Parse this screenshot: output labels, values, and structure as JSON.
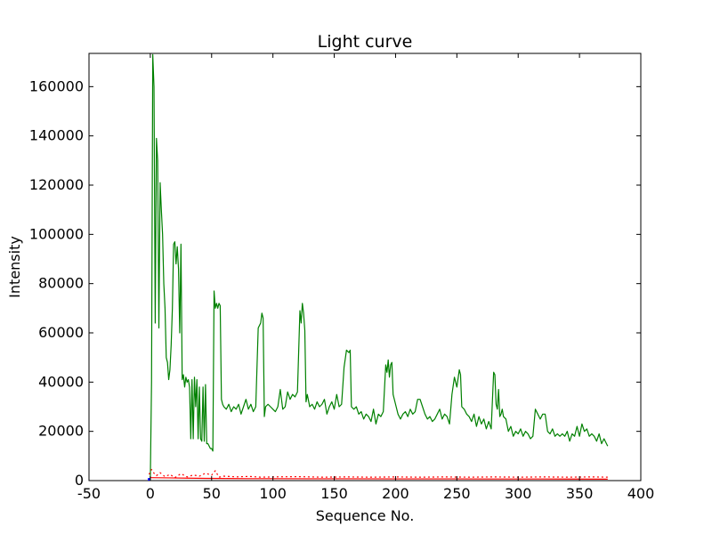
{
  "chart_data": {
    "type": "line",
    "title": "Light curve",
    "xlabel": "Sequence No.",
    "ylabel": "Intensity",
    "xlim": [
      -50,
      400
    ],
    "ylim": [
      0,
      173500
    ],
    "xticks": [
      -50,
      0,
      50,
      100,
      150,
      200,
      250,
      300,
      350,
      400
    ],
    "yticks": [
      0,
      20000,
      40000,
      60000,
      80000,
      100000,
      120000,
      140000,
      160000
    ],
    "grid": false,
    "legend": "none",
    "series": [
      {
        "color": "#008000",
        "style": "solid",
        "points": [
          [
            0,
            0
          ],
          [
            1,
            40000
          ],
          [
            2,
            173000
          ],
          [
            3,
            160000
          ],
          [
            4,
            64000
          ],
          [
            5,
            139000
          ],
          [
            6,
            130000
          ],
          [
            7,
            62000
          ],
          [
            8,
            121000
          ],
          [
            9,
            110000
          ],
          [
            10,
            100000
          ],
          [
            11,
            80000
          ],
          [
            12,
            70000
          ],
          [
            13,
            50000
          ],
          [
            14,
            48000
          ],
          [
            15,
            41000
          ],
          [
            16,
            45000
          ],
          [
            17,
            55000
          ],
          [
            18,
            70000
          ],
          [
            19,
            96000
          ],
          [
            20,
            97000
          ],
          [
            21,
            88000
          ],
          [
            22,
            95000
          ],
          [
            23,
            86000
          ],
          [
            24,
            60000
          ],
          [
            25,
            96000
          ],
          [
            26,
            41000
          ],
          [
            27,
            43000
          ],
          [
            28,
            38000
          ],
          [
            29,
            42000
          ],
          [
            30,
            40000
          ],
          [
            31,
            41000
          ],
          [
            32,
            38000
          ],
          [
            33,
            17000
          ],
          [
            34,
            41000
          ],
          [
            35,
            17000
          ],
          [
            36,
            42000
          ],
          [
            37,
            30000
          ],
          [
            38,
            41000
          ],
          [
            39,
            17000
          ],
          [
            40,
            38000
          ],
          [
            41,
            17000
          ],
          [
            42,
            16000
          ],
          [
            43,
            38000
          ],
          [
            44,
            16000
          ],
          [
            45,
            39000
          ],
          [
            46,
            15000
          ],
          [
            47,
            15000
          ],
          [
            48,
            14000
          ],
          [
            49,
            13000
          ],
          [
            50,
            13000
          ],
          [
            51,
            12000
          ],
          [
            52,
            77000
          ],
          [
            53,
            70000
          ],
          [
            54,
            72000
          ],
          [
            55,
            70000
          ],
          [
            56,
            72000
          ],
          [
            57,
            71000
          ],
          [
            58,
            33000
          ],
          [
            59,
            31000
          ],
          [
            60,
            30000
          ],
          [
            62,
            29000
          ],
          [
            64,
            31000
          ],
          [
            66,
            28000
          ],
          [
            68,
            30000
          ],
          [
            70,
            29000
          ],
          [
            72,
            31000
          ],
          [
            74,
            27000
          ],
          [
            76,
            30000
          ],
          [
            78,
            33000
          ],
          [
            80,
            29000
          ],
          [
            82,
            31000
          ],
          [
            84,
            28000
          ],
          [
            86,
            30000
          ],
          [
            88,
            62000
          ],
          [
            90,
            64000
          ],
          [
            91,
            68000
          ],
          [
            92,
            66000
          ],
          [
            93,
            26000
          ],
          [
            94,
            30000
          ],
          [
            96,
            31000
          ],
          [
            98,
            30000
          ],
          [
            100,
            29000
          ],
          [
            102,
            28000
          ],
          [
            104,
            30000
          ],
          [
            106,
            37000
          ],
          [
            108,
            29000
          ],
          [
            110,
            30000
          ],
          [
            112,
            36000
          ],
          [
            114,
            33000
          ],
          [
            116,
            35000
          ],
          [
            118,
            34000
          ],
          [
            120,
            36000
          ],
          [
            122,
            69000
          ],
          [
            123,
            64000
          ],
          [
            124,
            72000
          ],
          [
            125,
            68000
          ],
          [
            126,
            61000
          ],
          [
            127,
            32000
          ],
          [
            128,
            35000
          ],
          [
            130,
            30000
          ],
          [
            132,
            31000
          ],
          [
            134,
            29000
          ],
          [
            136,
            32000
          ],
          [
            138,
            30000
          ],
          [
            140,
            31000
          ],
          [
            142,
            33000
          ],
          [
            144,
            27000
          ],
          [
            146,
            30000
          ],
          [
            148,
            32000
          ],
          [
            150,
            29000
          ],
          [
            152,
            35000
          ],
          [
            154,
            30000
          ],
          [
            156,
            31000
          ],
          [
            158,
            46000
          ],
          [
            160,
            53000
          ],
          [
            162,
            52000
          ],
          [
            163,
            53000
          ],
          [
            164,
            30000
          ],
          [
            166,
            29000
          ],
          [
            168,
            30000
          ],
          [
            170,
            27000
          ],
          [
            172,
            28000
          ],
          [
            174,
            25000
          ],
          [
            176,
            27000
          ],
          [
            178,
            26000
          ],
          [
            180,
            24000
          ],
          [
            182,
            29000
          ],
          [
            184,
            23000
          ],
          [
            186,
            27000
          ],
          [
            188,
            26000
          ],
          [
            190,
            28000
          ],
          [
            192,
            47000
          ],
          [
            193,
            44000
          ],
          [
            194,
            49000
          ],
          [
            195,
            42000
          ],
          [
            196,
            47000
          ],
          [
            197,
            48000
          ],
          [
            198,
            35000
          ],
          [
            200,
            31000
          ],
          [
            202,
            27000
          ],
          [
            204,
            25000
          ],
          [
            206,
            27000
          ],
          [
            208,
            28000
          ],
          [
            210,
            26000
          ],
          [
            212,
            29000
          ],
          [
            214,
            27000
          ],
          [
            216,
            28000
          ],
          [
            218,
            33000
          ],
          [
            220,
            33000
          ],
          [
            222,
            30000
          ],
          [
            224,
            27000
          ],
          [
            226,
            25000
          ],
          [
            228,
            26000
          ],
          [
            230,
            24000
          ],
          [
            232,
            25000
          ],
          [
            234,
            27000
          ],
          [
            236,
            29000
          ],
          [
            238,
            25000
          ],
          [
            240,
            27000
          ],
          [
            242,
            26000
          ],
          [
            244,
            23000
          ],
          [
            246,
            35000
          ],
          [
            248,
            42000
          ],
          [
            250,
            38000
          ],
          [
            252,
            45000
          ],
          [
            253,
            43000
          ],
          [
            254,
            30000
          ],
          [
            256,
            29000
          ],
          [
            258,
            27000
          ],
          [
            260,
            26000
          ],
          [
            262,
            24000
          ],
          [
            264,
            27000
          ],
          [
            266,
            22000
          ],
          [
            268,
            26000
          ],
          [
            270,
            23000
          ],
          [
            272,
            25000
          ],
          [
            274,
            21000
          ],
          [
            276,
            24000
          ],
          [
            278,
            21000
          ],
          [
            280,
            44000
          ],
          [
            281,
            43000
          ],
          [
            282,
            31000
          ],
          [
            283,
            29000
          ],
          [
            284,
            37000
          ],
          [
            285,
            26000
          ],
          [
            286,
            27000
          ],
          [
            287,
            29000
          ],
          [
            288,
            26000
          ],
          [
            290,
            25000
          ],
          [
            292,
            20000
          ],
          [
            294,
            22000
          ],
          [
            296,
            18000
          ],
          [
            298,
            20000
          ],
          [
            300,
            19000
          ],
          [
            302,
            21000
          ],
          [
            304,
            18000
          ],
          [
            306,
            20000
          ],
          [
            308,
            19000
          ],
          [
            310,
            17000
          ],
          [
            312,
            18000
          ],
          [
            314,
            29000
          ],
          [
            316,
            27000
          ],
          [
            318,
            25000
          ],
          [
            320,
            27000
          ],
          [
            322,
            27000
          ],
          [
            324,
            20000
          ],
          [
            326,
            19000
          ],
          [
            328,
            21000
          ],
          [
            330,
            18000
          ],
          [
            332,
            19000
          ],
          [
            334,
            18000
          ],
          [
            336,
            19000
          ],
          [
            338,
            18000
          ],
          [
            340,
            20000
          ],
          [
            342,
            16000
          ],
          [
            344,
            19000
          ],
          [
            346,
            18000
          ],
          [
            348,
            22000
          ],
          [
            350,
            18000
          ],
          [
            352,
            23000
          ],
          [
            354,
            20000
          ],
          [
            356,
            21000
          ],
          [
            358,
            18000
          ],
          [
            360,
            19000
          ],
          [
            362,
            18000
          ],
          [
            364,
            16000
          ],
          [
            366,
            19000
          ],
          [
            368,
            15000
          ],
          [
            370,
            17000
          ],
          [
            372,
            15000
          ],
          [
            373,
            14000
          ]
        ]
      },
      {
        "color": "#ff0000",
        "style": "dashed",
        "points": [
          [
            -1,
            2500
          ],
          [
            1,
            4500
          ],
          [
            3,
            3000
          ],
          [
            5,
            2000
          ],
          [
            8,
            3200
          ],
          [
            12,
            1600
          ],
          [
            16,
            2500
          ],
          [
            20,
            1200
          ],
          [
            25,
            2800
          ],
          [
            30,
            1500
          ],
          [
            35,
            2300
          ],
          [
            40,
            1800
          ],
          [
            45,
            3000
          ],
          [
            50,
            2200
          ],
          [
            53,
            4000
          ],
          [
            56,
            1400
          ],
          [
            60,
            1800
          ],
          [
            70,
            1500
          ],
          [
            80,
            1700
          ],
          [
            90,
            1400
          ],
          [
            100,
            1500
          ],
          [
            120,
            1600
          ],
          [
            140,
            1400
          ],
          [
            160,
            1500
          ],
          [
            180,
            1400
          ],
          [
            200,
            1500
          ],
          [
            220,
            1400
          ],
          [
            240,
            1500
          ],
          [
            260,
            1400
          ],
          [
            280,
            1500
          ],
          [
            300,
            1400
          ],
          [
            320,
            1500
          ],
          [
            340,
            1400
          ],
          [
            360,
            1500
          ],
          [
            373,
            1400
          ]
        ]
      },
      {
        "color": "#ff0000",
        "style": "solid",
        "points": [
          [
            0,
            1200
          ],
          [
            15,
            1100
          ],
          [
            30,
            1000
          ],
          [
            45,
            900
          ],
          [
            60,
            850
          ],
          [
            80,
            800
          ],
          [
            100,
            800
          ],
          [
            130,
            750
          ],
          [
            160,
            750
          ],
          [
            200,
            700
          ],
          [
            240,
            700
          ],
          [
            280,
            650
          ],
          [
            320,
            650
          ],
          [
            373,
            600
          ]
        ]
      },
      {
        "color": "#0000ff",
        "style": "solid",
        "points": [
          [
            -2,
            500
          ],
          [
            -1,
            500
          ],
          [
            0,
            500
          ]
        ]
      }
    ]
  }
}
